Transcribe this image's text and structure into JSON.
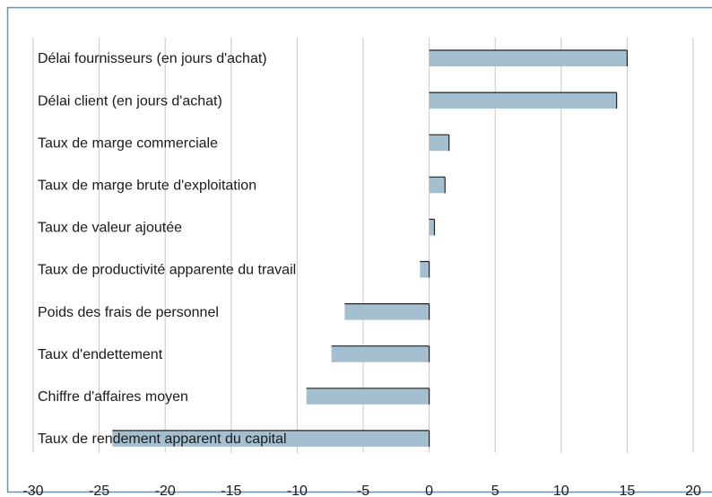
{
  "chart_data": {
    "type": "bar",
    "orientation": "horizontal",
    "categories": [
      "Délai fournisseurs (en jours d'achat)",
      "Délai client (en jours d'achat)",
      "Taux de marge commerciale",
      "Taux de marge brute d'exploitation",
      "Taux de valeur ajoutée",
      "Taux de productivité apparente du travail",
      "Poids des frais de personnel",
      "Taux d'endettement",
      "Chiffre d'affaires moyen",
      "Taux de rendement apparent du capital"
    ],
    "values": [
      15,
      14.2,
      1.5,
      1.2,
      0.4,
      -0.7,
      -6.4,
      -7.4,
      -9.3,
      -24
    ],
    "color": "#a4bfcf",
    "xlim": [
      -30,
      20
    ],
    "xticks": [
      -30,
      -25,
      -20,
      -15,
      -10,
      -5,
      0,
      5,
      10,
      15,
      20
    ],
    "grid": true
  }
}
